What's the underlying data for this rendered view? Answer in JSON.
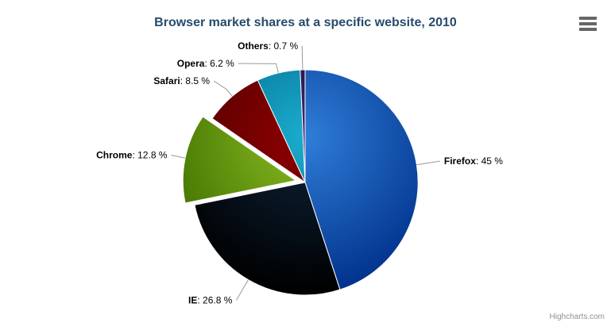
{
  "header": {
    "title": "Browser market shares at a specific website, 2010"
  },
  "credits": {
    "label": "Highcharts.com"
  },
  "icons": {
    "context_menu": "hamburger-menu-icon"
  },
  "colors": {
    "background": "#ffffff",
    "title": "#274b6d",
    "connector": "#999999",
    "data_label": "#000000",
    "credits": "#909090",
    "menu_icon": "#666666",
    "slice_border": "#ffffff"
  },
  "chart_data": {
    "type": "pie",
    "title": "Browser market shares at a specific website, 2010",
    "legend": false,
    "start_angle_deg": 0,
    "label_separator": ": ",
    "gradient_edge_darken": 0.3,
    "slices": [
      {
        "label": "Firefox",
        "value": 45,
        "display": "45 %",
        "color": "#2f7ed8",
        "sliced": false
      },
      {
        "label": "IE",
        "value": 26.8,
        "display": "26.8 %",
        "color": "#0d233a",
        "sliced": false
      },
      {
        "label": "Chrome",
        "value": 12.8,
        "display": "12.8 %",
        "color": "#8bbc21",
        "sliced": true
      },
      {
        "label": "Safari",
        "value": 8.5,
        "display": "8.5 %",
        "color": "#910000",
        "sliced": false
      },
      {
        "label": "Opera",
        "value": 6.2,
        "display": "6.2 %",
        "color": "#1aadce",
        "sliced": false
      },
      {
        "label": "Others",
        "value": 0.7,
        "display": "0.7 %",
        "color": "#492970",
        "sliced": false
      }
    ]
  }
}
